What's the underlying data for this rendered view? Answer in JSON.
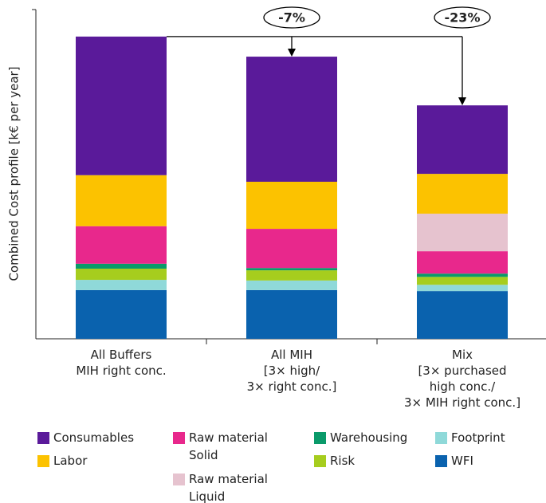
{
  "chart_data": {
    "type": "bar",
    "stacked": true,
    "ylabel": "Combined Cost profile [k€ per year]",
    "categories": [
      "All Buffers\nMIH right conc.",
      "All MIH\n[3× high/\n3× right conc.]",
      "Mix\n[3× purchased\nhigh conc./\n3× MIH right conc.]"
    ],
    "ylim": [
      0,
      100
    ],
    "series": [
      {
        "name": "WFI",
        "color": "#0a62ae",
        "values": [
          14.8,
          14.8,
          14.5
        ]
      },
      {
        "name": "Footprint",
        "color": "#8fd9d9",
        "values": [
          3.1,
          2.9,
          1.9
        ]
      },
      {
        "name": "Risk",
        "color": "#a6cd1e",
        "values": [
          3.4,
          3.1,
          2.4
        ]
      },
      {
        "name": "Warehousing",
        "color": "#0a9a6a",
        "values": [
          1.5,
          0.7,
          1.0
        ]
      },
      {
        "name": "Raw material Solid",
        "color": "#e8288c",
        "values": [
          11.4,
          11.9,
          6.8
        ]
      },
      {
        "name": "Raw material Liquid",
        "color": "#e6c3cf",
        "values": [
          0,
          0,
          11.4
        ]
      },
      {
        "name": "Labor",
        "color": "#fcc200",
        "values": [
          15.5,
          14.3,
          12.1
        ]
      },
      {
        "name": "Consumables",
        "color": "#5a1a9a",
        "values": [
          42.1,
          38.0,
          20.8
        ]
      }
    ],
    "annotations": [
      "-7%",
      "-23%"
    ]
  }
}
